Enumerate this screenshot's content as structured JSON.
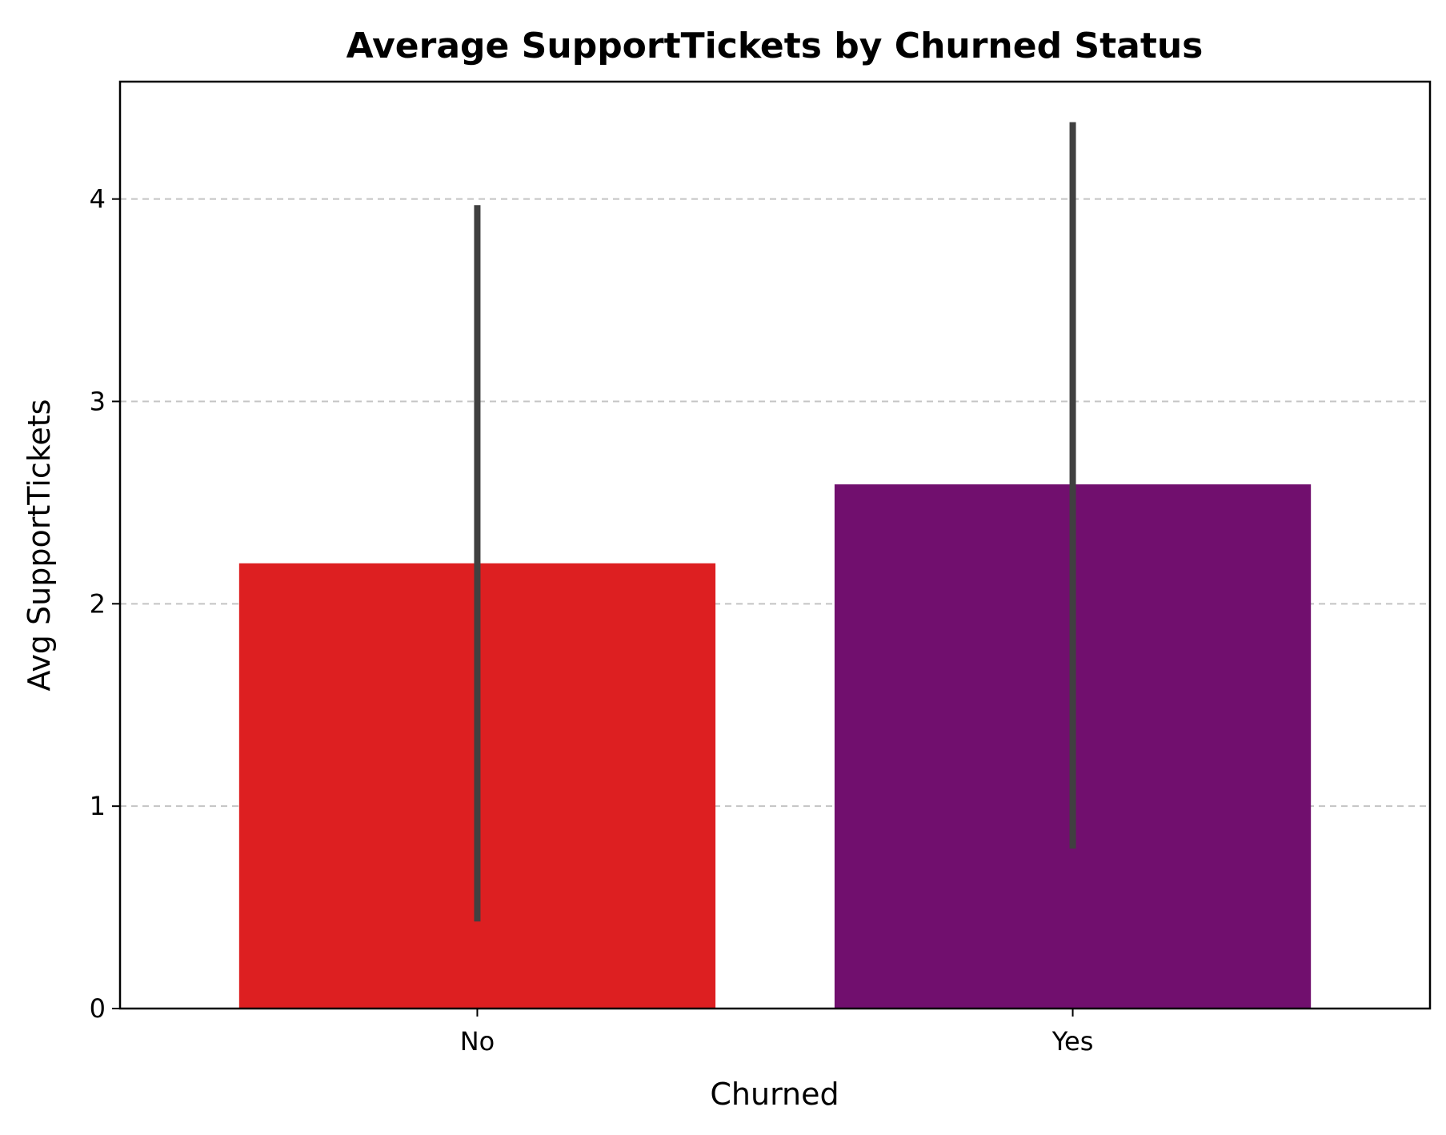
{
  "chart_data": {
    "type": "bar",
    "title": "Average SupportTickets by Churned Status",
    "xlabel": "Churned",
    "ylabel": "Avg SupportTickets",
    "categories": [
      "No",
      "Yes"
    ],
    "values": [
      2.2,
      2.59
    ],
    "error_bars": [
      {
        "low": 0.43,
        "high": 3.97
      },
      {
        "low": 0.79,
        "high": 4.38
      }
    ],
    "colors": [
      "#dd1f21",
      "#710f6e"
    ],
    "error_bar_color": "#404040",
    "ylim": [
      0,
      4.58
    ],
    "yticks": [
      0,
      1,
      2,
      3,
      4
    ],
    "grid": "horizontal dashed",
    "legend": "none"
  }
}
